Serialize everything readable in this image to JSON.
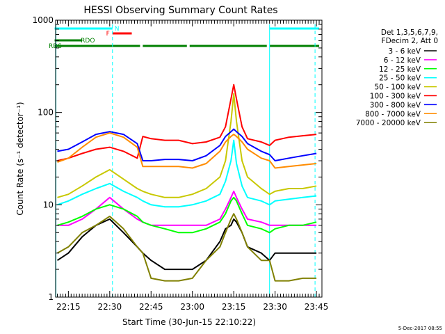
{
  "chart_data": {
    "type": "line",
    "title": "HESSI Observing Summary Count Rates",
    "xlabel": "Start Time (30-Jun-15 22:10:22)",
    "ylabel": "Count Rate (s⁻¹ detector⁻¹)",
    "x_ticks": [
      "22:15",
      "22:30",
      "22:45",
      "23:00",
      "23:15",
      "23:30",
      "23:45"
    ],
    "y_scale": "log",
    "y_ticks": [
      "1",
      "10",
      "100",
      "1000"
    ],
    "ylim": [
      1,
      1000
    ],
    "grid": false,
    "legend_position": "right",
    "legend_header": [
      "Det 1,3,5,6,7,9,",
      "FDecim 2, Att 0"
    ],
    "date_stamp": "5-Dec-2017 08:55",
    "flags": [
      {
        "label": "N",
        "color": "#00ffff",
        "segments": [
          [
            "22:10",
            "22:31"
          ],
          [
            "23:28",
            "23:46"
          ]
        ]
      },
      {
        "label": "F",
        "color": "#ff0000",
        "segments": [
          [
            "22:31",
            "22:38"
          ]
        ]
      },
      {
        "label": "RDO",
        "color": "#008000",
        "segments": [
          [
            "22:10",
            "22:20"
          ]
        ]
      },
      {
        "label": "RDS",
        "color": "#008000",
        "segments": [
          [
            "22:10",
            "22:41"
          ],
          [
            "22:42",
            "22:58"
          ],
          [
            "22:59",
            "23:27"
          ],
          [
            "23:28",
            "23:46"
          ]
        ]
      }
    ],
    "markers": [
      {
        "x": "22:31",
        "color": "#00ffff",
        "style": "dashed"
      },
      {
        "x": "23:44.5",
        "color": "#00ffff",
        "style": "dashed"
      },
      {
        "x": "22:10.5",
        "color": "#00ffff",
        "style": "solid"
      },
      {
        "x": "23:28",
        "color": "#00ffff",
        "style": "solid"
      }
    ],
    "x": [
      "22:11",
      "22:15",
      "22:20",
      "22:25",
      "22:30",
      "22:35",
      "22:40",
      "22:42",
      "22:45",
      "22:50",
      "22:55",
      "23:00",
      "23:05",
      "23:10",
      "23:12",
      "23:14",
      "23:15",
      "23:16",
      "23:18",
      "23:20",
      "23:25",
      "23:28",
      "23:30",
      "23:35",
      "23:40",
      "23:45"
    ],
    "series": [
      {
        "name": "3 - 6 keV",
        "color": "#000000",
        "values": [
          2.5,
          3,
          4.5,
          6,
          7,
          5,
          3.5,
          3,
          2.5,
          2,
          2,
          2,
          2.5,
          4,
          5.5,
          6,
          7,
          6.5,
          5,
          3.5,
          3,
          2.5,
          3,
          3,
          3,
          3
        ]
      },
      {
        "name": "6 - 12 keV",
        "color": "#ff00ff",
        "values": [
          6,
          6,
          7,
          9,
          12,
          9,
          7,
          6.5,
          6,
          6,
          6,
          6,
          6,
          7,
          9,
          12,
          14,
          12,
          9,
          7,
          6.5,
          6,
          6,
          6,
          6,
          6
        ]
      },
      {
        "name": "12 - 25 keV",
        "color": "#00ff00",
        "values": [
          6,
          6.5,
          7.5,
          9,
          10,
          9,
          7.5,
          6.5,
          6,
          5.5,
          5,
          5,
          5.5,
          6.5,
          8,
          11,
          12,
          11,
          8,
          6,
          5.5,
          5,
          5.5,
          6,
          6,
          6.5
        ]
      },
      {
        "name": "25 - 50 keV",
        "color": "#00ffff",
        "values": [
          10,
          11,
          13,
          15,
          17,
          14,
          12,
          11,
          10,
          9.5,
          9.5,
          10,
          11,
          13,
          18,
          30,
          50,
          28,
          16,
          12,
          11,
          10,
          11,
          11.5,
          12,
          12.5
        ]
      },
      {
        "name": "50 - 100 keV",
        "color": "#c8c800",
        "values": [
          12,
          13,
          16,
          20,
          24,
          19,
          15,
          14,
          13,
          12,
          12,
          13,
          15,
          20,
          30,
          80,
          160,
          80,
          30,
          20,
          15,
          13,
          14,
          15,
          15,
          16
        ]
      },
      {
        "name": "100 - 300 keV",
        "color": "#ff0000",
        "values": [
          30,
          32,
          36,
          40,
          42,
          38,
          32,
          55,
          52,
          50,
          50,
          46,
          48,
          54,
          70,
          140,
          200,
          140,
          70,
          52,
          48,
          44,
          50,
          54,
          56,
          58
        ]
      },
      {
        "name": "300 - 800 keV",
        "color": "#0000ff",
        "values": [
          38,
          40,
          48,
          58,
          62,
          58,
          46,
          30,
          30,
          31,
          31,
          30,
          34,
          44,
          55,
          62,
          66,
          62,
          55,
          46,
          38,
          35,
          30,
          32,
          34,
          36
        ]
      },
      {
        "name": "800 - 7000 keV",
        "color": "#ff8c00",
        "values": [
          29,
          32,
          42,
          54,
          60,
          54,
          42,
          26,
          26,
          26,
          26,
          25,
          28,
          38,
          48,
          55,
          58,
          55,
          48,
          40,
          32,
          30,
          25,
          26,
          27,
          28
        ]
      },
      {
        "name": "7000 - 20000 keV",
        "color": "#808000",
        "values": [
          3,
          3.5,
          5,
          6,
          7.5,
          5.5,
          3.5,
          3,
          1.6,
          1.5,
          1.5,
          1.6,
          2.5,
          3.5,
          5,
          7,
          8,
          7,
          5,
          3.5,
          2.5,
          2.5,
          1.5,
          1.5,
          1.6,
          1.6
        ]
      }
    ]
  }
}
